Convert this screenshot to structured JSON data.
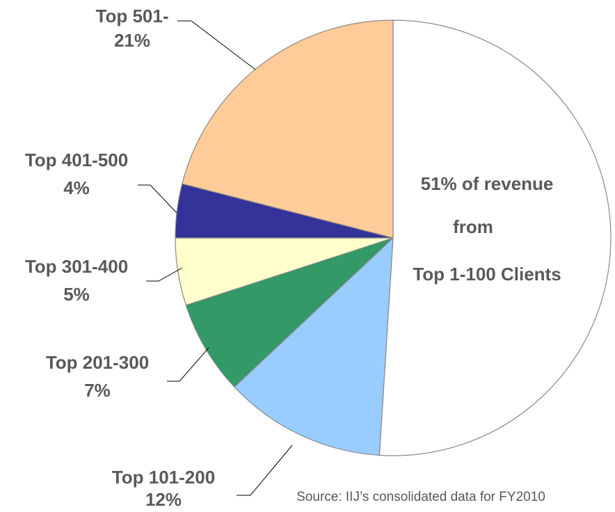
{
  "chart_data": {
    "type": "pie",
    "categories": [
      "Top 1-100 Clients",
      "Top 101-200",
      "Top 201-300",
      "Top 301-400",
      "Top 401-500",
      "Top 501-"
    ],
    "values": [
      51,
      12,
      7,
      5,
      4,
      21
    ],
    "value_labels": [
      "51% of revenue",
      "12%",
      "7%",
      "5%",
      "4%",
      "21%"
    ],
    "colors": [
      "#ffffff",
      "#99ccff",
      "#339966",
      "#ffffcc",
      "#333399",
      "#ffcc99"
    ],
    "annotation": "from",
    "source": "Source: IIJ’s consolidated data for FY2010"
  }
}
